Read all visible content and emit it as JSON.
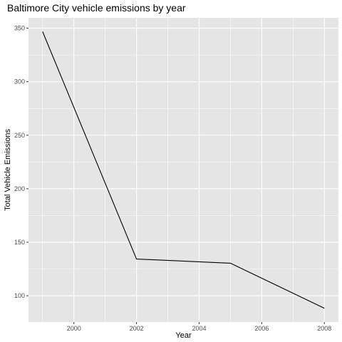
{
  "chart_data": {
    "type": "line",
    "title": "Baltimore City vehicle emissions by year",
    "xlabel": "Year",
    "ylabel": "Total Vehicle Emissions",
    "x": [
      1999,
      2002,
      2005,
      2008
    ],
    "series": [
      {
        "values": [
          346.8,
          134.3,
          130.4,
          88.3
        ]
      }
    ],
    "xlim": [
      1998.55,
      2008.45
    ],
    "ylim": [
      75.4,
      359.7
    ],
    "x_ticks": [
      2000,
      2002,
      2004,
      2006,
      2008
    ],
    "y_ticks": [
      100,
      150,
      200,
      250,
      300,
      350
    ],
    "grid": true,
    "line_color": "#000000",
    "panel_color": "#e5e5e5",
    "grid_color": "#ffffff"
  }
}
